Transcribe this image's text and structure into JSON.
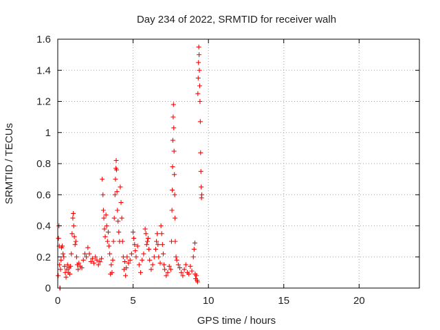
{
  "chart_data": {
    "type": "scatter",
    "title": "Day 234 of 2022, SRMTID for receiver walh",
    "xlabel": "GPS time / hours",
    "ylabel": "SRMTID / TECUs",
    "xlim": [
      0,
      24
    ],
    "ylim": [
      0,
      1.6
    ],
    "x_ticks": [
      0,
      5,
      10,
      15,
      20
    ],
    "x_tick_labels": [
      "0",
      "5",
      "10",
      "15",
      "20"
    ],
    "y_ticks": [
      0,
      0.2,
      0.4,
      0.6,
      0.8,
      1.0,
      1.2,
      1.4,
      1.6
    ],
    "y_tick_labels": [
      "0",
      "0.2",
      "0.4",
      "0.6",
      "0.8",
      "1",
      "1.2",
      "1.4",
      "1.6"
    ],
    "grid": true,
    "marker": "+",
    "marker_color": "#ff0000",
    "grid_color": "#a0a0a0",
    "axis_color": "#000000",
    "series": [
      {
        "name": "SRMTID",
        "points": [
          [
            0.03,
            0.08
          ],
          [
            0.05,
            0.32
          ],
          [
            0.08,
            0.4
          ],
          [
            0.1,
            0.27
          ],
          [
            0.12,
            0.15
          ],
          [
            0.14,
            0.0
          ],
          [
            0.16,
            0.0
          ],
          [
            0.18,
            0.12
          ],
          [
            0.22,
            0.18
          ],
          [
            0.25,
            0.26
          ],
          [
            0.3,
            0.27
          ],
          [
            0.35,
            0.22
          ],
          [
            0.4,
            0.2
          ],
          [
            0.45,
            0.14
          ],
          [
            0.5,
            0.1
          ],
          [
            0.55,
            0.07
          ],
          [
            0.6,
            0.12
          ],
          [
            0.65,
            0.15
          ],
          [
            0.7,
            0.1
          ],
          [
            0.75,
            0.13
          ],
          [
            0.8,
            0.09
          ],
          [
            0.85,
            0.14
          ],
          [
            0.9,
            0.22
          ],
          [
            0.95,
            0.35
          ],
          [
            1.0,
            0.45
          ],
          [
            1.03,
            0.48
          ],
          [
            1.06,
            0.4
          ],
          [
            1.1,
            0.33
          ],
          [
            1.15,
            0.28
          ],
          [
            1.2,
            0.3
          ],
          [
            1.25,
            0.2
          ],
          [
            1.3,
            0.15
          ],
          [
            1.35,
            0.12
          ],
          [
            1.4,
            0.16
          ],
          [
            1.5,
            0.14
          ],
          [
            1.6,
            0.13
          ],
          [
            1.7,
            0.18
          ],
          [
            1.8,
            0.22
          ],
          [
            1.9,
            0.2
          ],
          [
            2.0,
            0.26
          ],
          [
            2.1,
            0.22
          ],
          [
            2.2,
            0.17
          ],
          [
            2.3,
            0.19
          ],
          [
            2.4,
            0.16
          ],
          [
            2.5,
            0.2
          ],
          [
            2.6,
            0.18
          ],
          [
            2.7,
            0.15
          ],
          [
            2.8,
            0.17
          ],
          [
            2.9,
            0.19
          ],
          [
            2.95,
            0.7
          ],
          [
            3.0,
            0.6
          ],
          [
            3.03,
            0.5
          ],
          [
            3.06,
            0.45
          ],
          [
            3.1,
            0.38
          ],
          [
            3.15,
            0.33
          ],
          [
            3.2,
            0.47
          ],
          [
            3.25,
            0.4
          ],
          [
            3.3,
            0.3
          ],
          [
            3.35,
            0.36
          ],
          [
            3.4,
            0.27
          ],
          [
            3.45,
            0.22
          ],
          [
            3.5,
            0.09
          ],
          [
            3.55,
            0.15
          ],
          [
            3.6,
            0.1
          ],
          [
            3.65,
            0.18
          ],
          [
            3.7,
            0.3
          ],
          [
            3.75,
            0.45
          ],
          [
            3.8,
            0.6
          ],
          [
            3.83,
            0.7
          ],
          [
            3.86,
            0.77
          ],
          [
            3.88,
            0.82
          ],
          [
            3.9,
            0.76
          ],
          [
            3.93,
            0.62
          ],
          [
            3.96,
            0.5
          ],
          [
            4.0,
            0.43
          ],
          [
            4.05,
            0.36
          ],
          [
            4.1,
            0.3
          ],
          [
            4.15,
            0.65
          ],
          [
            4.2,
            0.55
          ],
          [
            4.25,
            0.45
          ],
          [
            4.3,
            0.3
          ],
          [
            4.35,
            0.2
          ],
          [
            4.4,
            0.12
          ],
          [
            4.45,
            0.17
          ],
          [
            4.5,
            0.08
          ],
          [
            4.55,
            0.13
          ],
          [
            4.6,
            0.2
          ],
          [
            4.7,
            0.16
          ],
          [
            4.8,
            0.18
          ],
          [
            4.9,
            0.22
          ],
          [
            5.0,
            0.36
          ],
          [
            5.05,
            0.32
          ],
          [
            5.1,
            0.28
          ],
          [
            5.15,
            0.24
          ],
          [
            5.2,
            0.2
          ],
          [
            5.3,
            0.27
          ],
          [
            5.4,
            0.15
          ],
          [
            5.5,
            0.1
          ],
          [
            5.6,
            0.18
          ],
          [
            5.7,
            0.22
          ],
          [
            5.8,
            0.38
          ],
          [
            5.85,
            0.35
          ],
          [
            5.9,
            0.28
          ],
          [
            5.95,
            0.3
          ],
          [
            6.0,
            0.32
          ],
          [
            6.05,
            0.25
          ],
          [
            6.1,
            0.18
          ],
          [
            6.2,
            0.12
          ],
          [
            6.3,
            0.15
          ],
          [
            6.4,
            0.2
          ],
          [
            6.5,
            0.25
          ],
          [
            6.55,
            0.3
          ],
          [
            6.6,
            0.35
          ],
          [
            6.65,
            0.28
          ],
          [
            6.7,
            0.2
          ],
          [
            6.8,
            0.16
          ],
          [
            6.85,
            0.4
          ],
          [
            6.9,
            0.35
          ],
          [
            6.95,
            0.28
          ],
          [
            7.0,
            0.22
          ],
          [
            7.05,
            0.15
          ],
          [
            7.1,
            0.12
          ],
          [
            7.2,
            0.08
          ],
          [
            7.3,
            0.1
          ],
          [
            7.4,
            0.14
          ],
          [
            7.5,
            0.12
          ],
          [
            7.55,
            0.3
          ],
          [
            7.58,
            0.5
          ],
          [
            7.6,
            0.63
          ],
          [
            7.62,
            0.78
          ],
          [
            7.64,
            0.95
          ],
          [
            7.66,
            1.1
          ],
          [
            7.68,
            1.18
          ],
          [
            7.7,
            1.03
          ],
          [
            7.72,
            0.88
          ],
          [
            7.74,
            0.73
          ],
          [
            7.76,
            0.6
          ],
          [
            7.78,
            0.45
          ],
          [
            7.8,
            0.3
          ],
          [
            7.85,
            0.2
          ],
          [
            7.9,
            0.18
          ],
          [
            8.0,
            0.15
          ],
          [
            8.1,
            0.13
          ],
          [
            8.2,
            0.1
          ],
          [
            8.3,
            0.08
          ],
          [
            8.4,
            0.12
          ],
          [
            8.5,
            0.15
          ],
          [
            8.6,
            0.1
          ],
          [
            8.7,
            0.09
          ],
          [
            8.8,
            0.14
          ],
          [
            8.9,
            0.11
          ],
          [
            9.0,
            0.2
          ],
          [
            9.05,
            0.25
          ],
          [
            9.1,
            0.29
          ],
          [
            9.12,
            0.09
          ],
          [
            9.15,
            0.06
          ],
          [
            9.2,
            0.08
          ],
          [
            9.25,
            0.05
          ],
          [
            9.28,
            0.04
          ],
          [
            9.3,
            1.25
          ],
          [
            9.32,
            1.35
          ],
          [
            9.34,
            1.45
          ],
          [
            9.36,
            1.55
          ],
          [
            9.38,
            1.5
          ],
          [
            9.4,
            1.4
          ],
          [
            9.42,
            1.3
          ],
          [
            9.44,
            1.2
          ],
          [
            9.46,
            1.07
          ],
          [
            9.48,
            0.87
          ],
          [
            9.5,
            0.75
          ],
          [
            9.52,
            0.65
          ],
          [
            9.54,
            0.58
          ],
          [
            9.56,
            0.6
          ]
        ]
      }
    ]
  }
}
